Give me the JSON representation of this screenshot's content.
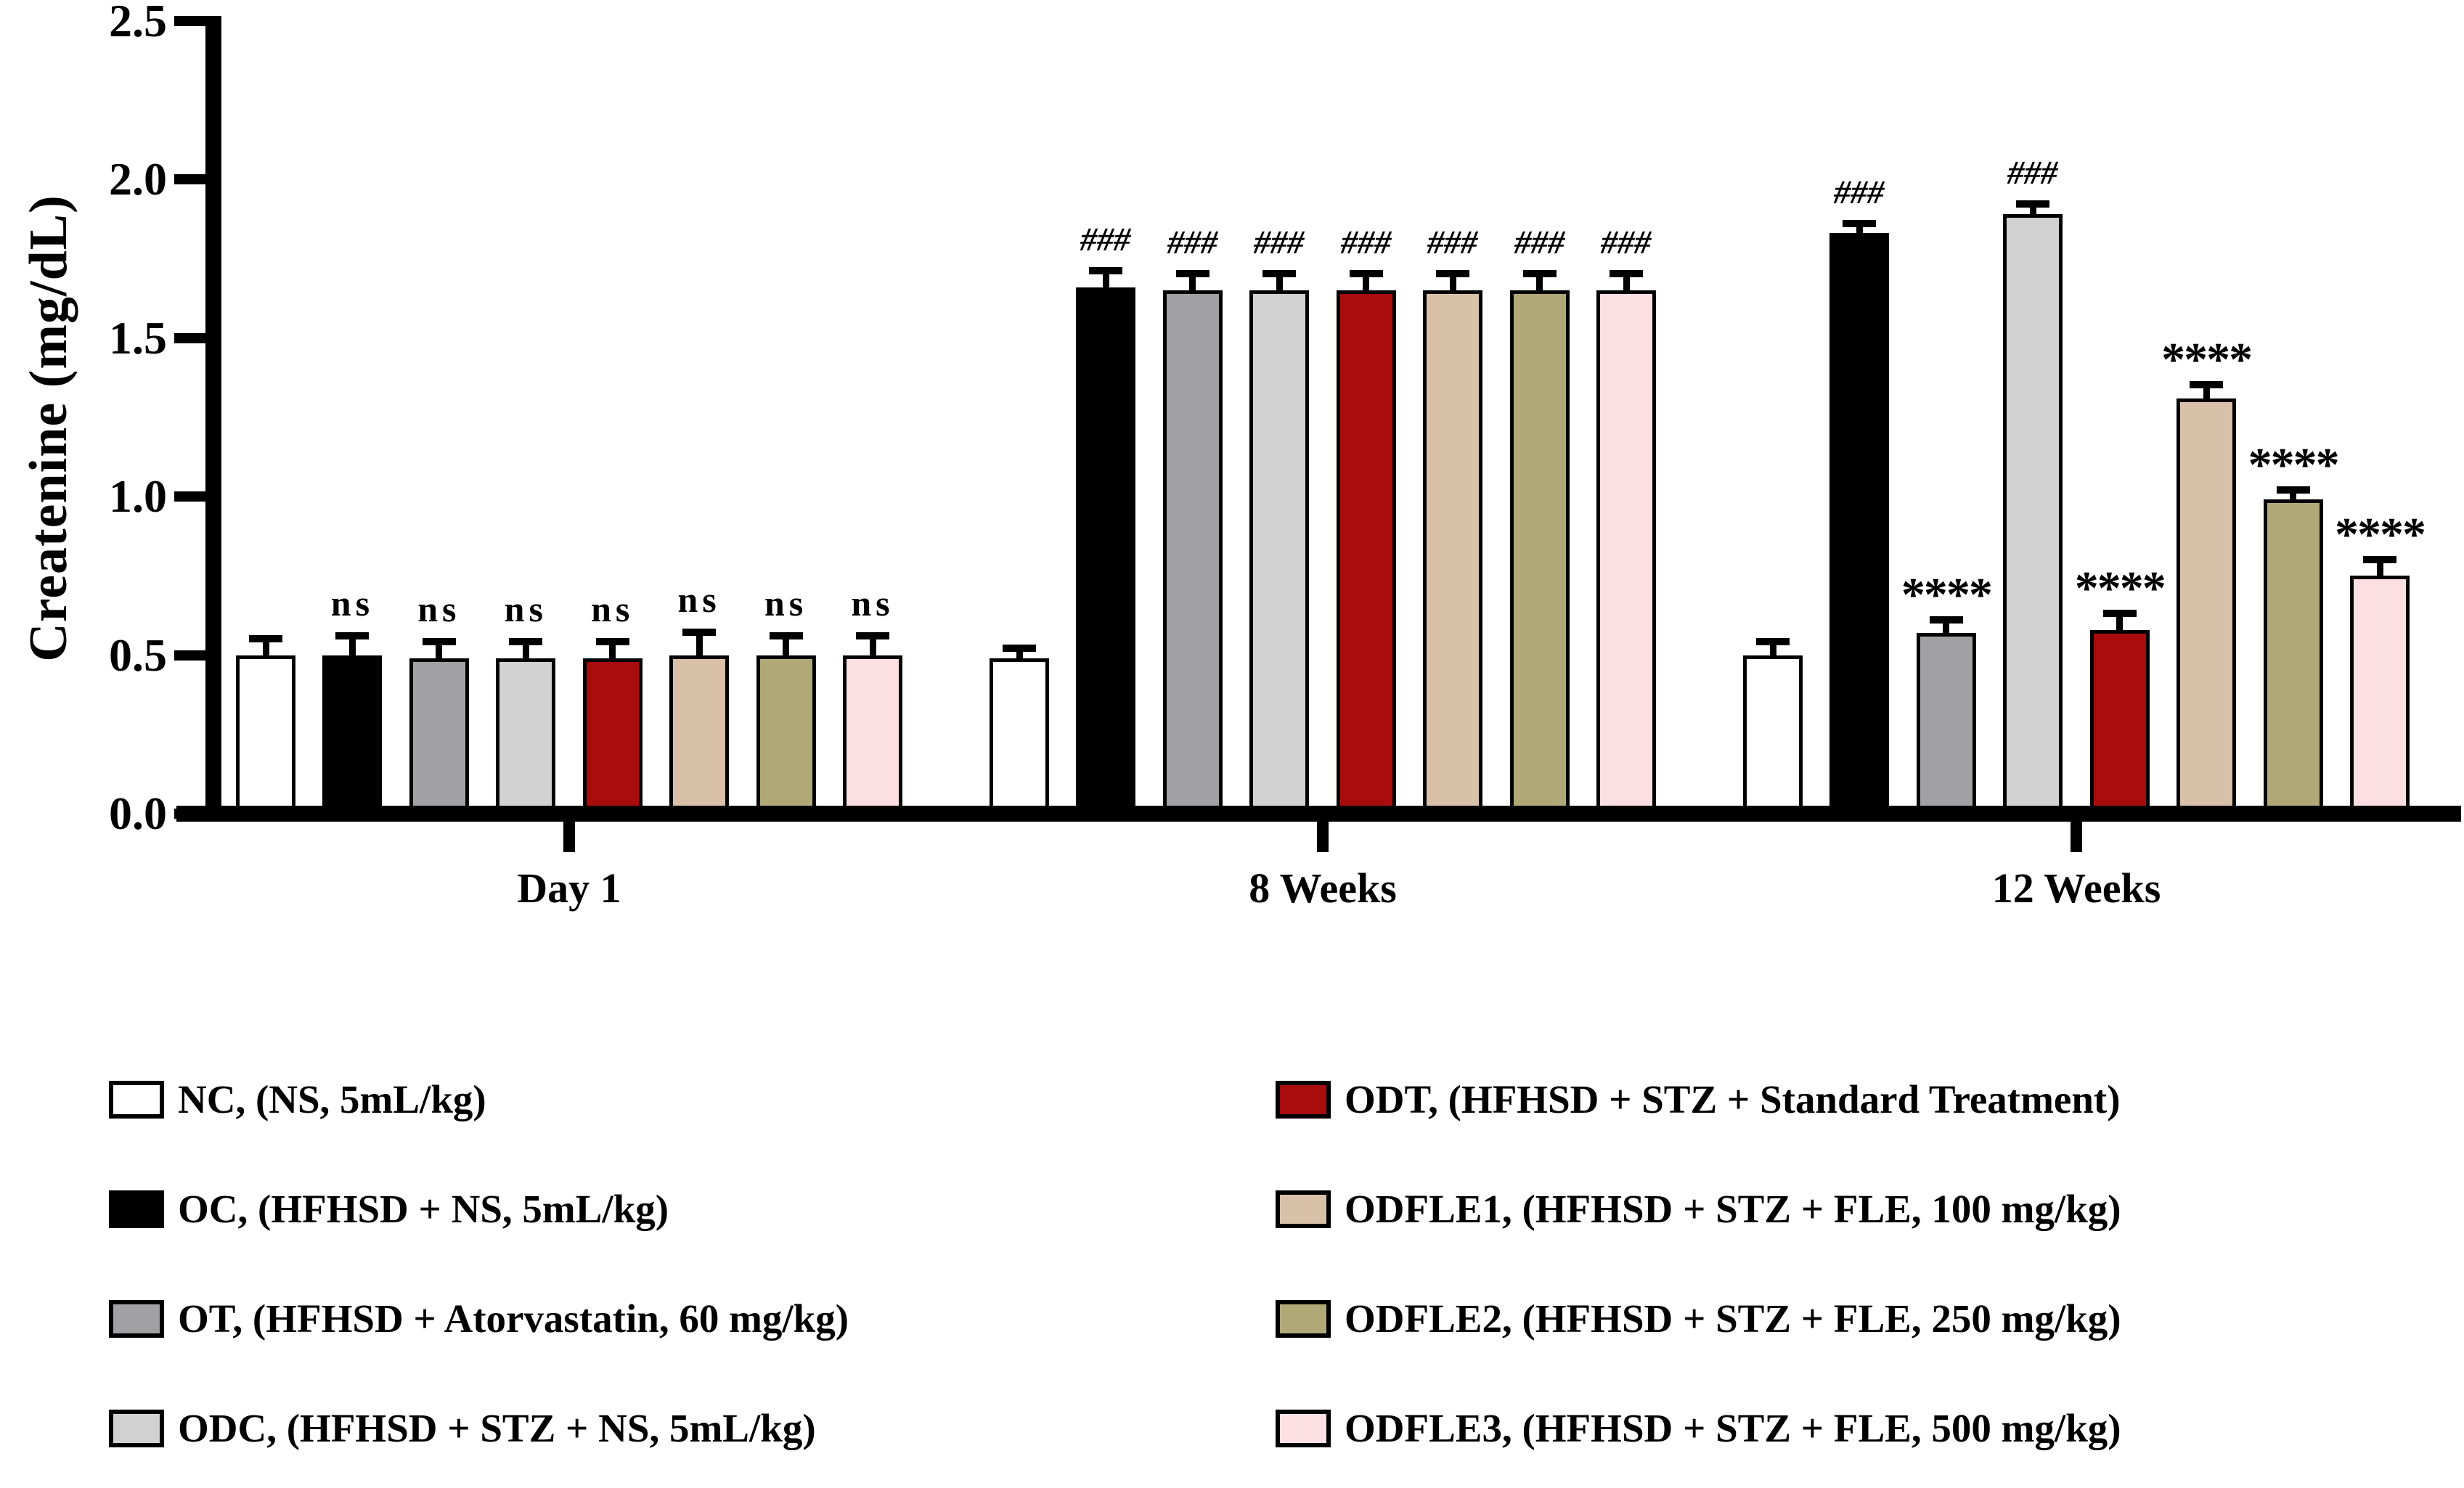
{
  "chart_data": {
    "type": "bar",
    "title": "",
    "xlabel": "",
    "ylabel": "Createnine (mg/dL)",
    "ylim": [
      0,
      2.5
    ],
    "yticks": [
      "0.0",
      "0.5",
      "1.0",
      "1.5",
      "2.0",
      "2.5"
    ],
    "grid": false,
    "legend_position": "bottom",
    "categories": [
      "Day 1",
      "8 Weeks",
      "12 Weeks"
    ],
    "series": [
      {
        "name": "NC, (NS, 5mL/kg)",
        "color": "#FFFFFF",
        "values": [
          0.5,
          0.49,
          0.5
        ],
        "errors": [
          0.04,
          0.02,
          0.03
        ],
        "annotations": [
          "",
          "",
          ""
        ]
      },
      {
        "name": "OC, (HFHSD + NS, 5mL/kg)",
        "color": "#000000",
        "values": [
          0.5,
          1.66,
          1.83
        ],
        "errors": [
          0.05,
          0.04,
          0.02
        ],
        "annotations": [
          "ns",
          "###",
          "###"
        ]
      },
      {
        "name": "OT, (HFHSD + Atorvastatin, 60 mg/kg)",
        "color": "#A1A0A3",
        "values": [
          0.49,
          1.65,
          0.57
        ],
        "errors": [
          0.04,
          0.04,
          0.03
        ],
        "annotations": [
          "ns",
          "###",
          "****"
        ]
      },
      {
        "name": "ODC, (HFHSD + STZ + NS, 5mL/kg)",
        "color": "#D2D2D2",
        "values": [
          0.49,
          1.65,
          1.89
        ],
        "errors": [
          0.04,
          0.04,
          0.02
        ],
        "annotations": [
          "ns",
          "###",
          "###"
        ]
      },
      {
        "name": "ODT, (HFHSD + STZ + Standard Treatment)",
        "color": "#A80C0C",
        "values": [
          0.49,
          1.65,
          0.58
        ],
        "errors": [
          0.04,
          0.04,
          0.04
        ],
        "annotations": [
          "ns",
          "###",
          "****"
        ]
      },
      {
        "name": "ODFLE1, (HFHSD + STZ + FLE, 100 mg/kg)",
        "color": "#D9C0A9",
        "values": [
          0.5,
          1.65,
          1.31
        ],
        "errors": [
          0.06,
          0.04,
          0.03
        ],
        "annotations": [
          "ns",
          "###",
          "****"
        ]
      },
      {
        "name": "ODFLE2, (HFHSD + STZ + FLE, 250 mg/kg)",
        "color": "#B1A878",
        "values": [
          0.5,
          1.65,
          0.99
        ],
        "errors": [
          0.05,
          0.04,
          0.02
        ],
        "annotations": [
          "ns",
          "###",
          "****"
        ]
      },
      {
        "name": "ODFLE3, (HFHSD + STZ + FLE, 500 mg/kg)",
        "color": "#FBDFE2",
        "values": [
          0.5,
          1.65,
          0.75
        ],
        "errors": [
          0.05,
          0.04,
          0.04
        ],
        "annotations": [
          "ns",
          "###",
          "****"
        ]
      }
    ],
    "legend": {
      "columns": [
        [
          0,
          1,
          2,
          3
        ],
        [
          4,
          5,
          6,
          7
        ]
      ]
    }
  }
}
